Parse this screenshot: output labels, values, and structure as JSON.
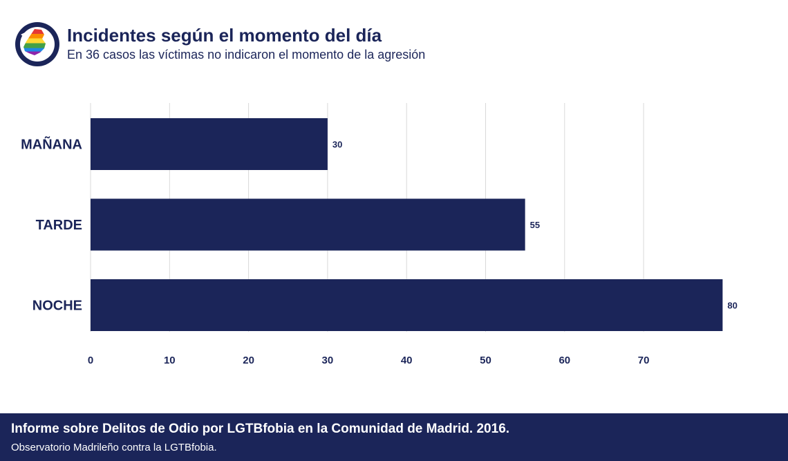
{
  "header": {
    "title": "Incidentes según el momento del día",
    "subtitle": "En 36 casos las víctimas no indicaron el momento de la agresión",
    "logo_icon": "observatory-rainbow-map-logo-icon"
  },
  "chart_data": {
    "type": "bar",
    "orientation": "horizontal",
    "categories": [
      "MAÑANA",
      "TARDE",
      "NOCHE"
    ],
    "values": [
      30,
      55,
      80
    ],
    "value_labels": [
      "30",
      "55",
      "80"
    ],
    "x_ticks": [
      0,
      10,
      20,
      30,
      40,
      50,
      60,
      70
    ],
    "x_tick_labels": [
      "0",
      "10",
      "20",
      "30",
      "40",
      "50",
      "60",
      "70"
    ],
    "xlim": [
      0,
      82
    ],
    "grid": true,
    "bar_color": "#1b2559",
    "grid_color": "#d9d9d9"
  },
  "footer": {
    "title": "Informe sobre Delitos de Odio por LGTBfobia en la Comunidad de Madrid. 2016.",
    "subtitle": "Observatorio Madrileño contra la LGTBfobia.",
    "background": "#1b2559"
  }
}
